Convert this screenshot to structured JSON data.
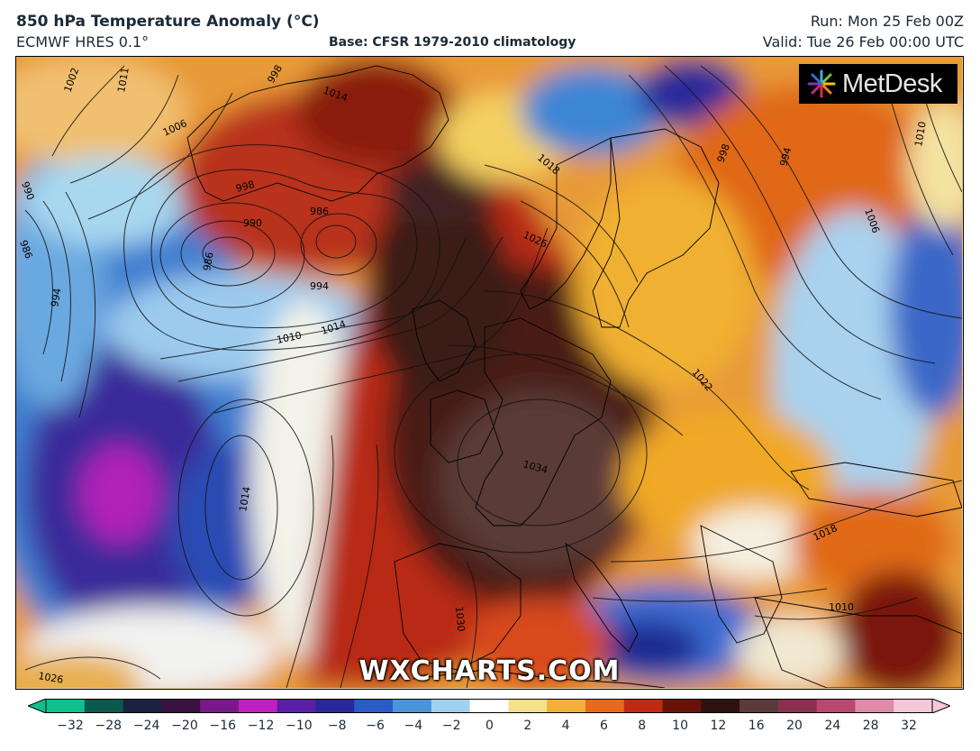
{
  "header": {
    "title": "850 hPa Temperature Anomaly (°C)",
    "model": "ECMWF HRES 0.1°",
    "base": "Base: CFSR 1979-2010 climatology",
    "run": "Run: Mon 25 Feb 00Z",
    "valid": "Valid: Tue 26 Feb 00:00 UTC"
  },
  "logo": {
    "text": "MetDesk",
    "icon": "metdesk-starburst-icon"
  },
  "watermark": "WXCHARTS.COM",
  "colorbar": {
    "ticks": [
      "−32",
      "−28",
      "−24",
      "−20",
      "−16",
      "−12",
      "−10",
      "−8",
      "−6",
      "−4",
      "−2",
      "0",
      "2",
      "4",
      "6",
      "8",
      "10",
      "12",
      "16",
      "20",
      "24",
      "28",
      "32"
    ],
    "colors": [
      "#0fbf8c",
      "#0a5a4e",
      "#1b2244",
      "#3a1240",
      "#7a1a8a",
      "#c020c0",
      "#5a1ea8",
      "#28289a",
      "#2a5cc8",
      "#4a94dc",
      "#9fd0ee",
      "#ffffff",
      "#f6e08a",
      "#f2b038",
      "#e86a18",
      "#c02a10",
      "#6a1208",
      "#2e1210",
      "#5a3a3a",
      "#8a3050",
      "#b84870",
      "#e08aa8",
      "#f5c8d8"
    ]
  },
  "map": {
    "isobar_labels": [
      "1002",
      "1011",
      "1006",
      "998",
      "1014",
      "1018",
      "998",
      "994",
      "1010",
      "990",
      "986",
      "986",
      "1026",
      "994",
      "1010",
      "1014",
      "1022",
      "1034",
      "1014",
      "1030",
      "1018",
      "1010",
      "1006",
      "986",
      "990",
      "998",
      "994",
      "1026"
    ]
  }
}
